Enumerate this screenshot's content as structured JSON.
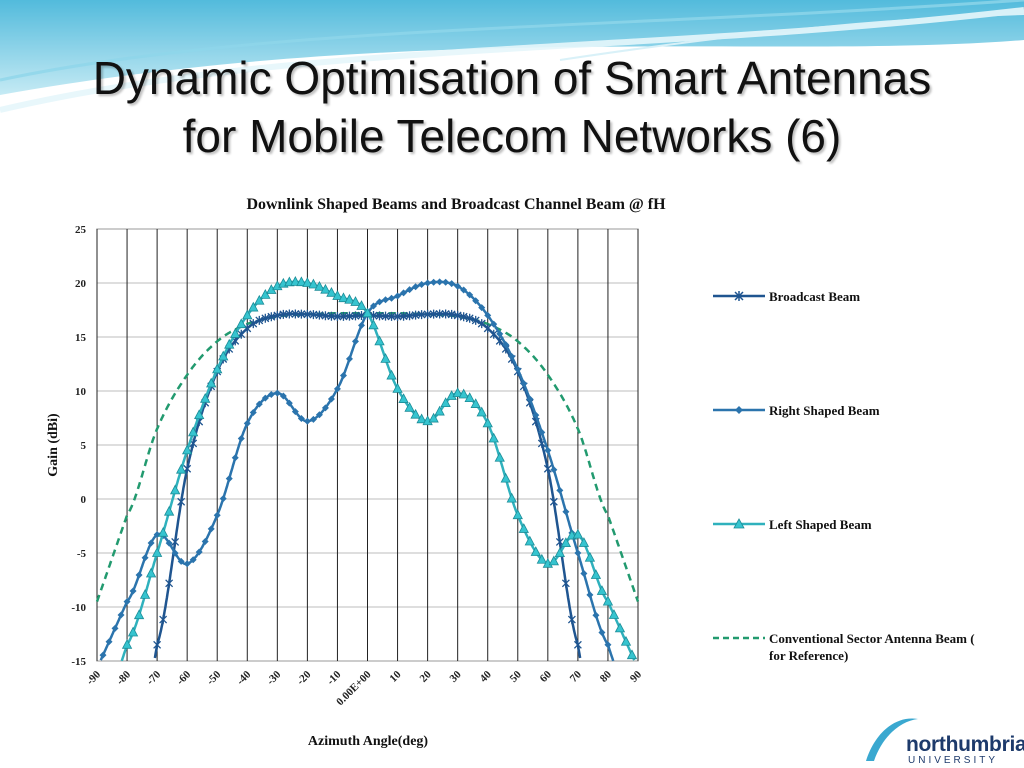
{
  "slide": {
    "title_line1": "Dynamic Optimisation of Smart Antennas",
    "title_line2": "for Mobile Telecom Networks (6)"
  },
  "logo": {
    "name": "northumbria",
    "sub": "UNIVERSITY"
  },
  "colors": {
    "broadcast": "#1f5590",
    "right": "#2b74ad",
    "left": "#2fb1bd",
    "conventional": "#229a6f",
    "background_top": "#58bfdd"
  },
  "chart_data": {
    "type": "line",
    "title": "Downlink Shaped Beams and Broadcast Channel Beam @ fH",
    "xlabel": "Azimuth Angle(deg)",
    "ylabel": "Gain (dBi)",
    "xlim": [
      -90,
      90
    ],
    "ylim": [
      -15,
      25
    ],
    "grid": true,
    "legend_position": "right",
    "x_tick_labels": [
      "-90",
      "-80",
      "-70",
      "-60",
      "-50",
      "-40",
      "-30",
      "-20",
      "-10",
      "0.00E+00",
      "10",
      "20",
      "30",
      "40",
      "50",
      "60",
      "70",
      "80",
      "90"
    ],
    "y_tick_labels": [
      "25",
      "20",
      "15",
      "10",
      "5",
      "0",
      "-5",
      "-10",
      "-15"
    ],
    "x": [
      -90,
      -80,
      -70,
      -60,
      -50,
      -40,
      -30,
      -20,
      -10,
      0,
      10,
      20,
      30,
      40,
      50,
      60,
      70,
      80,
      90
    ],
    "series": [
      {
        "name": "Broadcast Beam",
        "marker": "asterisk",
        "values": [
          null,
          null,
          -13.5,
          2.8,
          11.8,
          15.8,
          17.0,
          17.1,
          16.9,
          17.0,
          16.9,
          17.1,
          17.0,
          15.8,
          11.8,
          2.8,
          -13.5,
          null,
          null
        ]
      },
      {
        "name": "Right Shaped Beam",
        "marker": "diamond",
        "values": [
          null,
          -9.5,
          -3.3,
          -6.0,
          -1.5,
          7.0,
          9.8,
          7.2,
          10.2,
          17.2,
          18.8,
          20.0,
          19.7,
          17.0,
          12.0,
          4.5,
          -5.0,
          -13.5,
          null
        ]
      },
      {
        "name": "Left Shaped Beam",
        "marker": "triangle",
        "values": [
          null,
          -13.5,
          -5.0,
          4.5,
          12.0,
          17.0,
          19.7,
          20.0,
          18.8,
          17.2,
          10.2,
          7.2,
          9.8,
          7.0,
          -1.5,
          -6.0,
          -3.3,
          -9.5,
          null
        ]
      },
      {
        "name": "Conventional Sector Antenna Beam ( for Reference)",
        "dashed": true,
        "values": [
          null,
          -1.5,
          6.5,
          11.5,
          14.6,
          16.2,
          16.9,
          17.1,
          17.2,
          17.2,
          17.2,
          17.1,
          16.9,
          16.2,
          14.6,
          11.5,
          6.5,
          -1.5,
          null
        ]
      }
    ]
  }
}
